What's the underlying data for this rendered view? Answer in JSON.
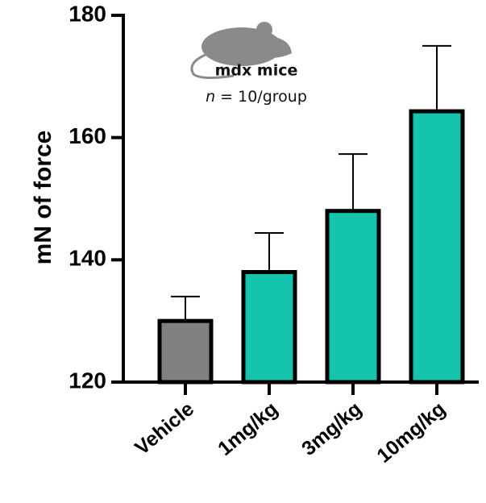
{
  "chart_data": {
    "type": "bar",
    "y_label": "mN of force",
    "categories": [
      "Vehicle",
      "1mg/kg",
      "3mg/kg",
      "10mg/kg"
    ],
    "values": [
      130,
      138,
      148,
      164.3
    ],
    "errors": [
      4,
      6.4,
      9.3,
      10.7
    ],
    "colors": [
      "#808080",
      "#14c4ad",
      "#14c4ad",
      "#14c4ad"
    ],
    "ylim": [
      120,
      180
    ],
    "yticks": [
      120,
      140,
      160,
      180
    ],
    "annotation": {
      "title": "mdx mice",
      "n_symbol": "n",
      "n_text": "= 10/group"
    }
  }
}
